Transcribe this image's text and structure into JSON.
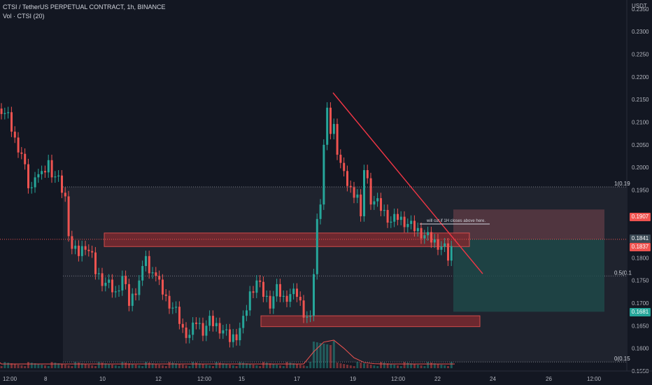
{
  "header": {
    "title": "CTSI / TetherUS PERPETUAL CONTRACT, 1h, BINANCE",
    "volume_label": "Vol · CTSI (20)"
  },
  "axis": {
    "currency": "USDT",
    "price_ticks": [
      "0.2350",
      "0.2300",
      "0.2250",
      "0.2200",
      "0.2150",
      "0.2100",
      "0.2050",
      "0.2000",
      "0.1950",
      "0.1800",
      "0.1750",
      "0.1700",
      "0.1650",
      "0.1600",
      "0.1550"
    ],
    "time_ticks": [
      "12:00",
      "8",
      "10",
      "12",
      "12:00",
      "15",
      "17",
      "19",
      "12:00",
      "22",
      "24",
      "26",
      "12:00"
    ]
  },
  "price_tags": {
    "upper": "0.1907",
    "current": "0.1841",
    "current2": "0.1837",
    "lower": "0.1681"
  },
  "fib": {
    "level_1": "1(0.19",
    "level_05": "0.5(0.1",
    "level_0": "0(0.15"
  },
  "annotation": "will cut if 1H closes above here.",
  "colors": {
    "background": "#131722",
    "up": "#26a69a",
    "down": "#ef5350",
    "trendline": "#f23645",
    "stop_zone": "#5d3a44",
    "target_zone": "#1e4a4a"
  },
  "chart_data": {
    "type": "candlestick",
    "ylim": [
      0.155,
      0.237
    ],
    "x_tick_labels": [
      "12:00",
      "8",
      "10",
      "12",
      "12:00",
      "15",
      "17",
      "19",
      "12:00",
      "22",
      "24",
      "26",
      "12:00"
    ],
    "close_path": [
      [
        0,
        0.213
      ],
      [
        2,
        0.211
      ],
      [
        4,
        0.206
      ],
      [
        6,
        0.203
      ],
      [
        8,
        0.196
      ],
      [
        9,
        0.195
      ],
      [
        10,
        0.199
      ],
      [
        12,
        0.198
      ],
      [
        14,
        0.201
      ],
      [
        15,
        0.199
      ],
      [
        17,
        0.197
      ],
      [
        19,
        0.193
      ],
      [
        20,
        0.186
      ],
      [
        21,
        0.182
      ],
      [
        23,
        0.181
      ],
      [
        25,
        0.183
      ],
      [
        27,
        0.18
      ],
      [
        28,
        0.177
      ],
      [
        30,
        0.175
      ],
      [
        32,
        0.174
      ],
      [
        34,
        0.172
      ],
      [
        36,
        0.176
      ],
      [
        37,
        0.173
      ],
      [
        38,
        0.17
      ],
      [
        40,
        0.173
      ],
      [
        42,
        0.177
      ],
      [
        43,
        0.181
      ],
      [
        44,
        0.176
      ],
      [
        45,
        0.178
      ],
      [
        47,
        0.174
      ],
      [
        49,
        0.171
      ],
      [
        50,
        0.17
      ],
      [
        52,
        0.168
      ],
      [
        54,
        0.164
      ],
      [
        56,
        0.163
      ],
      [
        58,
        0.166
      ],
      [
        60,
        0.164
      ],
      [
        62,
        0.166
      ],
      [
        64,
        0.165
      ],
      [
        66,
        0.164
      ],
      [
        68,
        0.162
      ],
      [
        70,
        0.163
      ],
      [
        72,
        0.166
      ],
      [
        74,
        0.172
      ],
      [
        76,
        0.175
      ],
      [
        78,
        0.172
      ],
      [
        80,
        0.17
      ],
      [
        82,
        0.173
      ],
      [
        84,
        0.171
      ],
      [
        86,
        0.172
      ],
      [
        88,
        0.172
      ],
      [
        90,
        0.168
      ],
      [
        92,
        0.166
      ],
      [
        94,
        0.188
      ],
      [
        95,
        0.193
      ],
      [
        96,
        0.205
      ],
      [
        97,
        0.212
      ],
      [
        98,
        0.208
      ],
      [
        99,
        0.209
      ],
      [
        100,
        0.204
      ],
      [
        102,
        0.198
      ],
      [
        104,
        0.195
      ],
      [
        106,
        0.194
      ],
      [
        107,
        0.188
      ],
      [
        108,
        0.2
      ],
      [
        109,
        0.197
      ],
      [
        110,
        0.193
      ],
      [
        112,
        0.192
      ],
      [
        114,
        0.19
      ],
      [
        116,
        0.188
      ],
      [
        118,
        0.189
      ],
      [
        120,
        0.188
      ],
      [
        122,
        0.187
      ],
      [
        124,
        0.186
      ],
      [
        126,
        0.185
      ],
      [
        128,
        0.184
      ],
      [
        130,
        0.183
      ],
      [
        132,
        0.182
      ],
      [
        133,
        0.18
      ],
      [
        134,
        0.182
      ],
      [
        135,
        0.184
      ]
    ],
    "stop_price": 0.1907,
    "entry_price": 0.1841,
    "target_price": 0.1681,
    "fib_levels": [
      0.1957,
      0.176,
      0.157
    ],
    "zones": [
      {
        "low": 0.1825,
        "high": 0.1855
      },
      {
        "low": 0.1648,
        "high": 0.1672
      }
    ]
  }
}
